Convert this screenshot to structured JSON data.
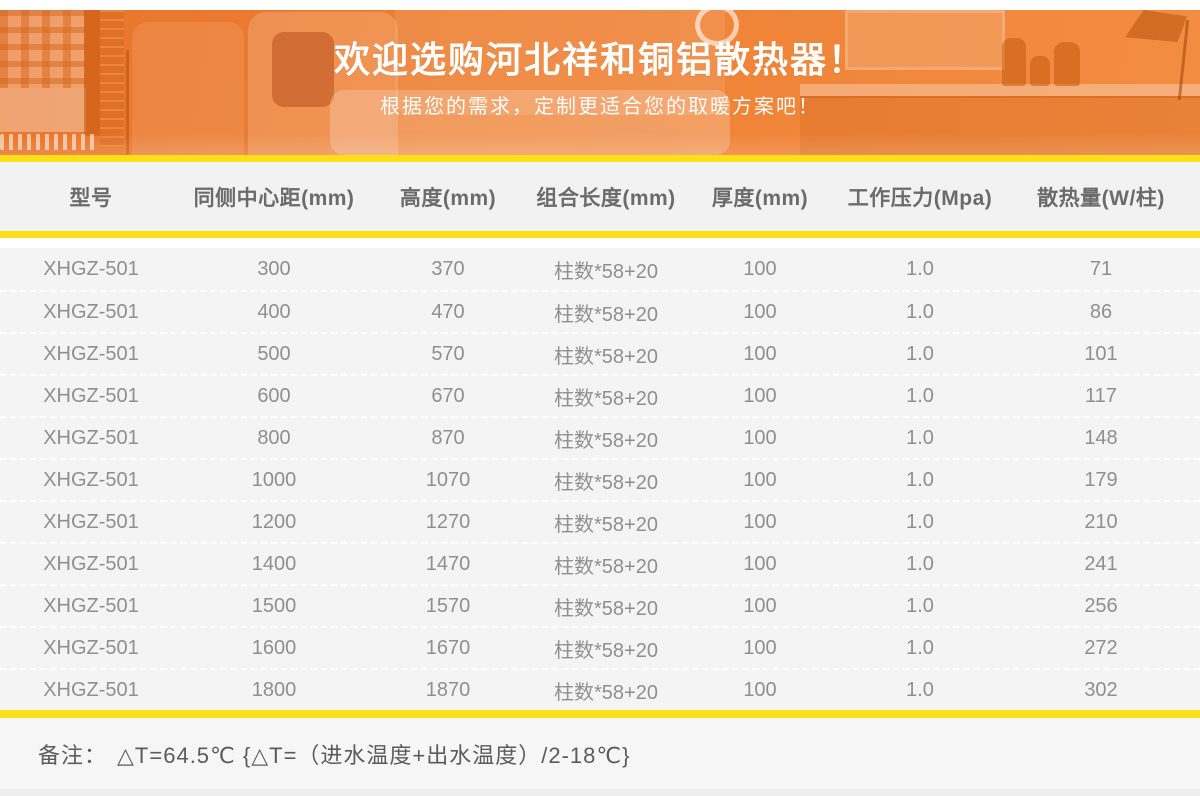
{
  "banner": {
    "title": "欢迎选购河北祥和铜铝散热器！",
    "subtitle": "根据您的需求，定制更适合您的取暖方案吧！"
  },
  "table": {
    "columns": [
      "型号",
      "同侧中心距(mm)",
      "高度(mm)",
      "组合长度(mm)",
      "厚度(mm)",
      "工作压力(Mpa)",
      "散热量(W/柱)"
    ],
    "rows": [
      [
        "XHGZ-501",
        "300",
        "370",
        "柱数*58+20",
        "100",
        "1.0",
        "71"
      ],
      [
        "XHGZ-501",
        "400",
        "470",
        "柱数*58+20",
        "100",
        "1.0",
        "86"
      ],
      [
        "XHGZ-501",
        "500",
        "570",
        "柱数*58+20",
        "100",
        "1.0",
        "101"
      ],
      [
        "XHGZ-501",
        "600",
        "670",
        "柱数*58+20",
        "100",
        "1.0",
        "117"
      ],
      [
        "XHGZ-501",
        "800",
        "870",
        "柱数*58+20",
        "100",
        "1.0",
        "148"
      ],
      [
        "XHGZ-501",
        "1000",
        "1070",
        "柱数*58+20",
        "100",
        "1.0",
        "179"
      ],
      [
        "XHGZ-501",
        "1200",
        "1270",
        "柱数*58+20",
        "100",
        "1.0",
        "210"
      ],
      [
        "XHGZ-501",
        "1400",
        "1470",
        "柱数*58+20",
        "100",
        "1.0",
        "241"
      ],
      [
        "XHGZ-501",
        "1500",
        "1570",
        "柱数*58+20",
        "100",
        "1.0",
        "256"
      ],
      [
        "XHGZ-501",
        "1600",
        "1670",
        "柱数*58+20",
        "100",
        "1.0",
        "272"
      ],
      [
        "XHGZ-501",
        "1800",
        "1870",
        "柱数*58+20",
        "100",
        "1.0",
        "302"
      ]
    ]
  },
  "note": {
    "label": "备注：",
    "formula": "△T=64.5℃ {△T=（进水温度+出水温度）/2-18℃}"
  },
  "colors": {
    "accent_orange": "#ef8134",
    "accent_orange_dark": "#e8752a",
    "accent_orange_light": "#f28d42",
    "divider_yellow": "#fcdf17",
    "header_bg": "#f2f2f2",
    "row_bg": "#f4f4f4",
    "note_bg": "#f6f6f6"
  }
}
